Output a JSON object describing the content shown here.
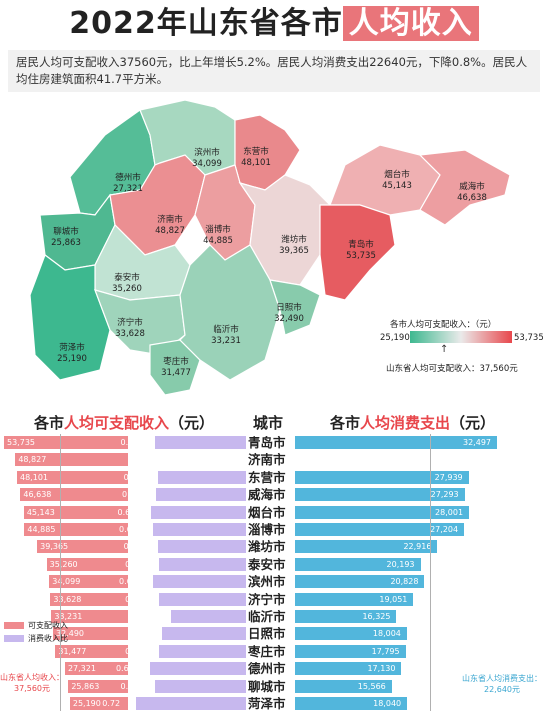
{
  "title": {
    "main": "2022年山东省各市",
    "highlight": "人均收入"
  },
  "description": "居民人均可支配收入37560元，比上年增长5.2%。居民人均消费支出22640元，下降0.8%。居民人均住房建筑面积41.7平方米。",
  "map": {
    "legend_title": "各市人均可支配收入：（元）",
    "legend_min": "25,190",
    "legend_max": "53,735",
    "legend_note": "山东省人均可支配收入：37,560元",
    "color_low": "#3db88f",
    "color_mid": "#eaeaea",
    "color_high": "#e8474c",
    "cities": [
      {
        "name": "滨州市",
        "value": "34,099"
      },
      {
        "name": "东营市",
        "value": "48,101"
      },
      {
        "name": "德州市",
        "value": "27,321"
      },
      {
        "name": "烟台市",
        "value": "45,143"
      },
      {
        "name": "威海市",
        "value": "46,638"
      },
      {
        "name": "济南市",
        "value": "48,827"
      },
      {
        "name": "淄博市",
        "value": "44,885"
      },
      {
        "name": "聊城市",
        "value": "25,863"
      },
      {
        "name": "潍坊市",
        "value": "39,365"
      },
      {
        "name": "青岛市",
        "value": "53,735"
      },
      {
        "name": "泰安市",
        "value": "35,260"
      },
      {
        "name": "日照市",
        "value": "32,490"
      },
      {
        "name": "济宁市",
        "value": "33,628"
      },
      {
        "name": "临沂市",
        "value": "33,231"
      },
      {
        "name": "菏泽市",
        "value": "25,190"
      },
      {
        "name": "枣庄市",
        "value": "31,477"
      }
    ]
  },
  "headers": {
    "income_prefix": "各市",
    "income_hl": "人均可支配收入",
    "income_suffix": "（元）",
    "city": "城市",
    "expense_prefix": "各市",
    "expense_hl": "人均消费支出",
    "expense_suffix": "（元）"
  },
  "legend": {
    "income": "可支配收入",
    "ratio": "消费收入比"
  },
  "notes": {
    "income": "山东省人均收入：37,560元",
    "expense": "山东省人均消费支出：22,640元"
  },
  "rows": [
    {
      "city": "青岛市",
      "income": 53735,
      "income_label": "53,735",
      "ratio": 0.6,
      "ratio_label": "0.60",
      "expense": 32497,
      "expense_label": "32,497"
    },
    {
      "city": "济南市",
      "income": 48827,
      "income_label": "48,827",
      "ratio": null,
      "ratio_label": "",
      "expense": null,
      "expense_label": ""
    },
    {
      "city": "东营市",
      "income": 48101,
      "income_label": "48,101",
      "ratio": 0.58,
      "ratio_label": "0.58",
      "expense": 27939,
      "expense_label": "27,939"
    },
    {
      "city": "威海市",
      "income": 46638,
      "income_label": "46,638",
      "ratio": 0.59,
      "ratio_label": "0.59",
      "expense": 27293,
      "expense_label": "27,293"
    },
    {
      "city": "烟台市",
      "income": 45143,
      "income_label": "45,143",
      "ratio": 0.62,
      "ratio_label": "0.62",
      "expense": 28001,
      "expense_label": "28,001"
    },
    {
      "city": "淄博市",
      "income": 44885,
      "income_label": "44,885",
      "ratio": 0.61,
      "ratio_label": "0.61",
      "expense": 27204,
      "expense_label": "27,204"
    },
    {
      "city": "潍坊市",
      "income": 39365,
      "income_label": "39,365",
      "ratio": 0.58,
      "ratio_label": "0.58",
      "expense": 22916,
      "expense_label": "22,916"
    },
    {
      "city": "泰安市",
      "income": 35260,
      "income_label": "35,260",
      "ratio": 0.57,
      "ratio_label": "0.57",
      "expense": 20193,
      "expense_label": "20,193"
    },
    {
      "city": "滨州市",
      "income": 34099,
      "income_label": "34,099",
      "ratio": 0.61,
      "ratio_label": "0.61",
      "expense": 20828,
      "expense_label": "20,828"
    },
    {
      "city": "济宁市",
      "income": 33628,
      "income_label": "33,628",
      "ratio": 0.57,
      "ratio_label": "0.57",
      "expense": 19051,
      "expense_label": "19,051"
    },
    {
      "city": "临沂市",
      "income": 33231,
      "income_label": "33,231",
      "ratio": 0.49,
      "ratio_label": "0.49",
      "expense": 16325,
      "expense_label": "16,325"
    },
    {
      "city": "日照市",
      "income": 32490,
      "income_label": "32,490",
      "ratio": 0.55,
      "ratio_label": "0.55",
      "expense": 18004,
      "expense_label": "18,004"
    },
    {
      "city": "枣庄市",
      "income": 31477,
      "income_label": "31,477",
      "ratio": 0.57,
      "ratio_label": "0.57",
      "expense": 17795,
      "expense_label": "17,795"
    },
    {
      "city": "德州市",
      "income": 27321,
      "income_label": "27,321",
      "ratio": 0.63,
      "ratio_label": "0.63",
      "expense": 17130,
      "expense_label": "17,130"
    },
    {
      "city": "聊城市",
      "income": 25863,
      "income_label": "25,863",
      "ratio": 0.6,
      "ratio_label": "0.60",
      "expense": 15566,
      "expense_label": "15,566"
    },
    {
      "city": "菏泽市",
      "income": 25190,
      "income_label": "25,190",
      "ratio": 0.72,
      "ratio_label": "0.72",
      "expense": 18040,
      "expense_label": "18,040"
    }
  ]
}
